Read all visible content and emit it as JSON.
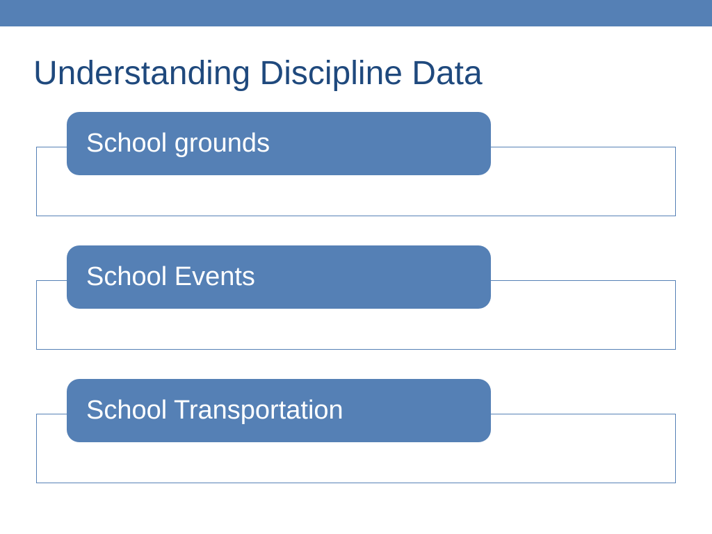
{
  "colors": {
    "topBar": "#5580b5",
    "title": "#1f497d",
    "frameBorder": "#5580b5",
    "pillFill": "#5580b5",
    "pillText": "#ffffff",
    "background": "#ffffff"
  },
  "title": "Understanding Discipline Data",
  "items": [
    {
      "label": "School grounds"
    },
    {
      "label": "School Events"
    },
    {
      "label": "School Transportation"
    }
  ],
  "layout": {
    "titleFontSize": 48,
    "pillFontSize": 38,
    "pillBorderRadius": 18,
    "pillWidth": 610,
    "pillLeftOffset": 48,
    "groupHeight": 150,
    "groupGap": 42,
    "frameTopOffset": 50,
    "frameHeight": 100
  }
}
